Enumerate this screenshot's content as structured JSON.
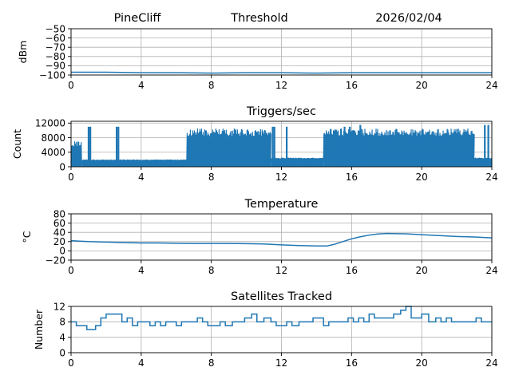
{
  "header": {
    "station": "PineCliff",
    "mode": "Threshold",
    "date": "2026/02/04"
  },
  "colors": {
    "line": "#1f77b4",
    "grid": "#b0b0b0",
    "axis": "#000000"
  },
  "chart_data": [
    {
      "type": "line",
      "title": "",
      "ylabel": "dBm",
      "xlim": [
        0,
        24
      ],
      "ylim": [
        -100,
        -50
      ],
      "xticks": [
        0,
        4,
        8,
        12,
        16,
        20,
        24
      ],
      "yticks": [
        -100,
        -90,
        -80,
        -70,
        -60,
        -50
      ],
      "ytick_labels": [
        "−100",
        "−90",
        "−80",
        "−70",
        "−60",
        "−50"
      ],
      "grid": true,
      "x": [
        0,
        2,
        4,
        6,
        8,
        10,
        12,
        14,
        16,
        18,
        20,
        22,
        24
      ],
      "values": [
        -97,
        -97,
        -97.5,
        -97.5,
        -98,
        -97.5,
        -97.5,
        -98,
        -97.5,
        -97.5,
        -97.5,
        -97.5,
        -97.5
      ]
    },
    {
      "type": "line",
      "title": "Triggers/sec",
      "ylabel": "Count",
      "xlim": [
        0,
        24
      ],
      "ylim": [
        0,
        12500
      ],
      "xticks": [
        0,
        4,
        8,
        12,
        16,
        20,
        24
      ],
      "yticks": [
        0,
        4000,
        8000,
        12000
      ],
      "ytick_labels": [
        "0",
        "4000",
        "8000",
        "12000"
      ],
      "grid": true,
      "segments": [
        {
          "x0": 0.0,
          "x1": 0.6,
          "base": 1500,
          "high": 7000
        },
        {
          "x0": 0.6,
          "x1": 6.6,
          "base": 1300,
          "high": 2000
        },
        {
          "x0": 6.6,
          "x1": 11.4,
          "base": 2000,
          "high": 10500
        },
        {
          "x0": 11.4,
          "x1": 14.4,
          "base": 1500,
          "high": 2500
        },
        {
          "x0": 14.4,
          "x1": 16.6,
          "base": 2500,
          "high": 10500
        },
        {
          "x0": 16.6,
          "x1": 23.0,
          "base": 2500,
          "high": 10500
        },
        {
          "x0": 23.0,
          "x1": 24.0,
          "base": 1500,
          "high": 2500
        }
      ],
      "spikes": [
        {
          "x": 1.0,
          "value": 11000
        },
        {
          "x": 1.1,
          "value": 11000
        },
        {
          "x": 2.6,
          "value": 11000
        },
        {
          "x": 2.7,
          "value": 11000
        },
        {
          "x": 11.5,
          "value": 11000
        },
        {
          "x": 11.6,
          "value": 11000
        },
        {
          "x": 12.3,
          "value": 11000
        },
        {
          "x": 15.6,
          "value": 11000
        },
        {
          "x": 15.9,
          "value": 11000
        },
        {
          "x": 16.5,
          "value": 11500
        },
        {
          "x": 23.6,
          "value": 11500
        },
        {
          "x": 23.8,
          "value": 11500
        }
      ]
    },
    {
      "type": "line",
      "title": "Temperature",
      "ylabel": "°C",
      "xlim": [
        0,
        24
      ],
      "ylim": [
        -20,
        80
      ],
      "xticks": [
        0,
        4,
        8,
        12,
        16,
        20,
        24
      ],
      "yticks": [
        -20,
        0,
        20,
        40,
        60,
        80
      ],
      "ytick_labels": [
        "−20",
        "0",
        "20",
        "40",
        "60",
        "80"
      ],
      "grid": true,
      "x": [
        0,
        0.5,
        1,
        2,
        3,
        4,
        5,
        6,
        7,
        8,
        9,
        10,
        11,
        12,
        13,
        14,
        14.6,
        15,
        15.5,
        16,
        16.5,
        17,
        17.5,
        18,
        19,
        20,
        21,
        22,
        23,
        24
      ],
      "values": [
        22,
        21,
        20,
        19,
        18,
        17,
        17,
        16.5,
        16,
        16,
        16,
        15.5,
        15,
        13,
        11.5,
        10.5,
        10.5,
        14,
        20,
        26,
        30.5,
        34,
        36.5,
        37.5,
        37,
        35,
        33,
        31,
        30,
        28
      ]
    },
    {
      "type": "line",
      "title": "Satellites Tracked",
      "ylabel": "Number",
      "xlim": [
        0,
        24
      ],
      "ylim": [
        0,
        12
      ],
      "xticks": [
        0,
        4,
        8,
        12,
        16,
        20,
        24
      ],
      "yticks": [
        0,
        4,
        8,
        12
      ],
      "ytick_labels": [
        "0",
        "4",
        "8",
        "12"
      ],
      "grid": true,
      "x": [
        0,
        0.3,
        0.6,
        0.9,
        1.2,
        1.4,
        1.7,
        2.0,
        2.6,
        2.9,
        3.2,
        3.5,
        3.8,
        4.2,
        4.5,
        4.8,
        5.1,
        5.4,
        5.7,
        6.0,
        6.3,
        6.8,
        7.2,
        7.5,
        7.8,
        8.1,
        8.5,
        8.8,
        9.2,
        9.5,
        9.9,
        10.3,
        10.6,
        11.0,
        11.4,
        11.7,
        12.0,
        12.3,
        12.6,
        13.0,
        13.4,
        13.8,
        14.1,
        14.4,
        14.7,
        15.0,
        15.4,
        15.8,
        16.1,
        16.4,
        16.7,
        17.0,
        17.3,
        17.6,
        18.0,
        18.4,
        18.8,
        19.1,
        19.4,
        19.7,
        20.0,
        20.4,
        20.8,
        21.1,
        21.4,
        21.7,
        22.0,
        22.4,
        22.8,
        23.1,
        23.4,
        23.7,
        24.0
      ],
      "values": [
        8,
        7,
        7,
        6,
        6,
        7,
        9,
        10,
        10,
        8,
        9,
        7,
        8,
        8,
        7,
        8,
        7,
        8,
        8,
        7,
        8,
        8,
        9,
        8,
        7,
        7,
        8,
        7,
        8,
        8,
        9,
        10,
        8,
        9,
        8,
        7,
        7,
        8,
        7,
        8,
        8,
        9,
        9,
        7,
        8,
        8,
        8,
        9,
        8,
        9,
        8,
        10,
        9,
        9,
        9,
        10,
        11,
        12,
        9,
        9,
        10,
        8,
        9,
        8,
        9,
        8,
        8,
        8,
        8,
        9,
        8,
        8,
        8
      ]
    }
  ]
}
